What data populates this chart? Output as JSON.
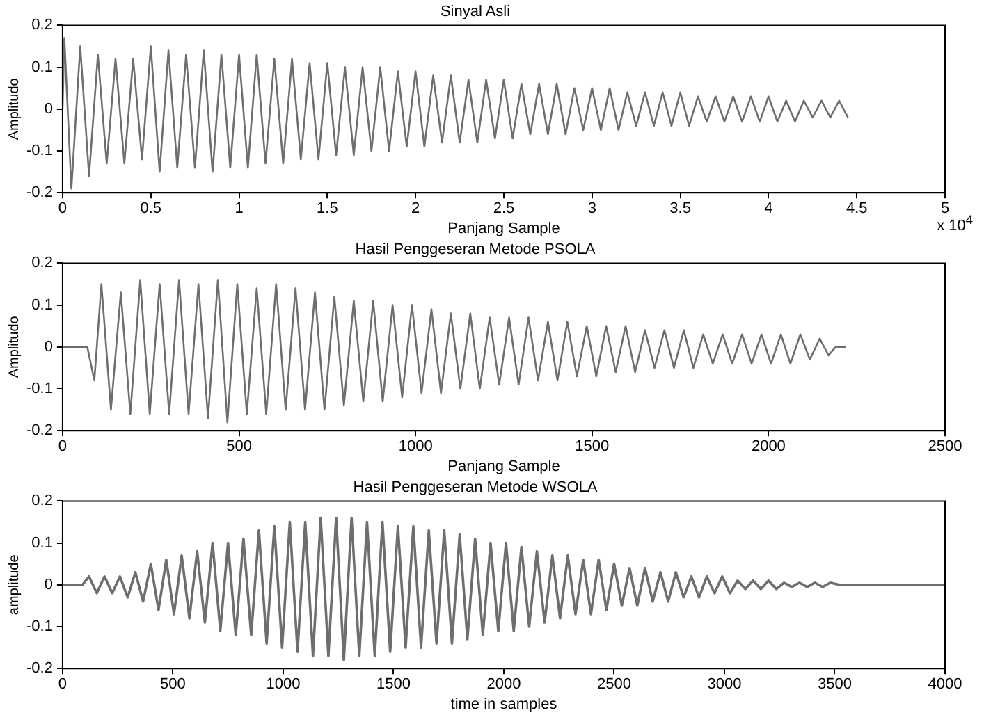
{
  "chart_data": [
    {
      "type": "line",
      "title": "Sinyal Asli",
      "xlabel": "Panjang Sample",
      "ylabel": "Amplitudo",
      "annotations": [
        "x 10$^{4}$"
      ],
      "xlim": [
        0,
        5
      ],
      "ylim": [
        -0.2,
        0.2
      ],
      "xticks": [
        0,
        0.5,
        1,
        1.5,
        2,
        2.5,
        3,
        3.5,
        4,
        4.5,
        5
      ],
      "yticks": [
        -0.2,
        -0.1,
        0,
        0.1,
        0.2
      ],
      "x": [
        0,
        0.01,
        0.05,
        0.1,
        0.15,
        0.2,
        0.25,
        0.3,
        0.35,
        0.4,
        0.45,
        0.5,
        0.55,
        0.6,
        0.65,
        0.7,
        0.75,
        0.8,
        0.85,
        0.9,
        0.95,
        1,
        1.05,
        1.1,
        1.15,
        1.2,
        1.25,
        1.3,
        1.35,
        1.4,
        1.45,
        1.5,
        1.55,
        1.6,
        1.65,
        1.7,
        1.75,
        1.8,
        1.85,
        1.9,
        1.95,
        2,
        2.05,
        2.1,
        2.15,
        2.2,
        2.25,
        2.3,
        2.35,
        2.4,
        2.45,
        2.5,
        2.55,
        2.6,
        2.65,
        2.7,
        2.75,
        2.8,
        2.85,
        2.9,
        2.95,
        3,
        3.05,
        3.1,
        3.15,
        3.2,
        3.25,
        3.3,
        3.35,
        3.4,
        3.45,
        3.5,
        3.55,
        3.6,
        3.65,
        3.7,
        3.75,
        3.8,
        3.85,
        3.9,
        3.95,
        4,
        4.05,
        4.1,
        4.15,
        4.2,
        4.25,
        4.3,
        4.35,
        4.4,
        4.45
      ],
      "series": [
        {
          "color": "#6e6e6e",
          "values": [
            0,
            0.17,
            -0.19,
            0.15,
            -0.16,
            0.13,
            -0.13,
            0.12,
            -0.13,
            0.12,
            -0.12,
            0.15,
            -0.15,
            0.14,
            -0.14,
            0.13,
            -0.14,
            0.14,
            -0.15,
            0.13,
            -0.14,
            0.13,
            -0.14,
            0.13,
            -0.13,
            0.12,
            -0.13,
            0.12,
            -0.12,
            0.11,
            -0.12,
            0.11,
            -0.11,
            0.1,
            -0.11,
            0.1,
            -0.1,
            0.1,
            -0.1,
            0.09,
            -0.09,
            0.09,
            -0.09,
            0.08,
            -0.08,
            0.08,
            -0.08,
            0.07,
            -0.08,
            0.07,
            -0.07,
            0.07,
            -0.07,
            0.06,
            -0.06,
            0.06,
            -0.06,
            0.06,
            -0.06,
            0.05,
            -0.05,
            0.05,
            -0.05,
            0.05,
            -0.05,
            0.04,
            -0.04,
            0.04,
            -0.04,
            0.04,
            -0.04,
            0.04,
            -0.04,
            0.03,
            -0.03,
            0.03,
            -0.03,
            0.03,
            -0.03,
            0.03,
            -0.03,
            0.03,
            -0.03,
            0.02,
            -0.03,
            0.02,
            -0.02,
            0.02,
            -0.02,
            0.02,
            -0.02
          ]
        }
      ]
    },
    {
      "type": "line",
      "title": "Hasil Penggeseran Metode PSOLA",
      "xlabel": "Panjang Sample",
      "ylabel": "Amplitudo",
      "xlim": [
        0,
        2500
      ],
      "ylim": [
        -0.2,
        0.2
      ],
      "xticks": [
        0,
        500,
        1000,
        1500,
        2000,
        2500
      ],
      "yticks": [
        -0.2,
        -0.1,
        0,
        0.1,
        0.2
      ],
      "x": [
        0,
        70,
        90,
        110,
        137,
        165,
        192,
        220,
        247,
        275,
        302,
        330,
        357,
        385,
        412,
        440,
        467,
        495,
        522,
        550,
        577,
        605,
        632,
        660,
        687,
        715,
        742,
        770,
        797,
        825,
        852,
        880,
        907,
        935,
        962,
        990,
        1017,
        1045,
        1072,
        1100,
        1127,
        1155,
        1182,
        1210,
        1237,
        1265,
        1292,
        1320,
        1347,
        1375,
        1402,
        1430,
        1457,
        1485,
        1512,
        1540,
        1567,
        1595,
        1622,
        1650,
        1677,
        1705,
        1732,
        1760,
        1787,
        1815,
        1842,
        1870,
        1897,
        1925,
        1952,
        1980,
        2007,
        2035,
        2062,
        2090,
        2117,
        2145,
        2170,
        2190,
        2220
      ],
      "series": [
        {
          "color": "#6e6e6e",
          "values": [
            0,
            0,
            -0.08,
            0.15,
            -0.15,
            0.13,
            -0.16,
            0.16,
            -0.16,
            0.15,
            -0.16,
            0.16,
            -0.16,
            0.15,
            -0.17,
            0.16,
            -0.18,
            0.15,
            -0.16,
            0.14,
            -0.16,
            0.15,
            -0.15,
            0.14,
            -0.15,
            0.13,
            -0.15,
            0.12,
            -0.14,
            0.11,
            -0.13,
            0.11,
            -0.13,
            0.1,
            -0.12,
            0.1,
            -0.11,
            0.09,
            -0.11,
            0.08,
            -0.1,
            0.08,
            -0.1,
            0.07,
            -0.09,
            0.07,
            -0.09,
            0.07,
            -0.08,
            0.06,
            -0.08,
            0.06,
            -0.07,
            0.05,
            -0.07,
            0.05,
            -0.06,
            0.05,
            -0.06,
            0.04,
            -0.05,
            0.04,
            -0.05,
            0.04,
            -0.05,
            0.03,
            -0.04,
            0.03,
            -0.04,
            0.03,
            -0.04,
            0.03,
            -0.04,
            0.03,
            -0.04,
            0.03,
            -0.03,
            0.02,
            -0.02,
            0,
            0
          ]
        }
      ]
    },
    {
      "type": "line",
      "title": "Hasil Penggeseran Metode WSOLA",
      "xlabel": "time in samples",
      "ylabel": "amplitude",
      "xlim": [
        0,
        4000
      ],
      "ylim": [
        -0.2,
        0.2
      ],
      "xticks": [
        0,
        500,
        1000,
        1500,
        2000,
        2500,
        3000,
        3500,
        4000
      ],
      "yticks": [
        -0.2,
        -0.1,
        0,
        0.1,
        0.2
      ],
      "x": [
        0,
        90,
        120,
        155,
        190,
        225,
        260,
        295,
        330,
        365,
        400,
        435,
        470,
        505,
        540,
        575,
        610,
        645,
        680,
        715,
        750,
        785,
        820,
        855,
        890,
        925,
        960,
        995,
        1030,
        1065,
        1100,
        1135,
        1170,
        1205,
        1240,
        1275,
        1310,
        1345,
        1380,
        1415,
        1450,
        1485,
        1520,
        1555,
        1590,
        1625,
        1660,
        1695,
        1730,
        1765,
        1800,
        1835,
        1870,
        1905,
        1940,
        1975,
        2010,
        2045,
        2080,
        2115,
        2150,
        2185,
        2220,
        2255,
        2290,
        2325,
        2360,
        2395,
        2430,
        2465,
        2500,
        2535,
        2570,
        2605,
        2640,
        2675,
        2710,
        2745,
        2780,
        2815,
        2850,
        2885,
        2920,
        2955,
        2990,
        3025,
        3060,
        3095,
        3130,
        3165,
        3200,
        3235,
        3270,
        3305,
        3340,
        3375,
        3410,
        3445,
        3480,
        3520,
        4000
      ],
      "series": [
        {
          "color": "#6e6e6e",
          "values": [
            0,
            0,
            0.02,
            -0.02,
            0.02,
            -0.02,
            0.02,
            -0.03,
            0.03,
            -0.04,
            0.05,
            -0.06,
            0.06,
            -0.07,
            0.07,
            -0.08,
            0.08,
            -0.09,
            0.1,
            -0.11,
            0.1,
            -0.12,
            0.11,
            -0.12,
            0.13,
            -0.14,
            0.14,
            -0.15,
            0.15,
            -0.16,
            0.15,
            -0.17,
            0.16,
            -0.17,
            0.16,
            -0.18,
            0.16,
            -0.17,
            0.15,
            -0.17,
            0.15,
            -0.16,
            0.14,
            -0.15,
            0.14,
            -0.15,
            0.13,
            -0.14,
            0.13,
            -0.14,
            0.12,
            -0.13,
            0.11,
            -0.12,
            0.1,
            -0.11,
            0.1,
            -0.11,
            0.09,
            -0.1,
            0.08,
            -0.09,
            0.07,
            -0.08,
            0.07,
            -0.07,
            0.06,
            -0.07,
            0.06,
            -0.06,
            0.05,
            -0.05,
            0.04,
            -0.05,
            0.04,
            -0.04,
            0.03,
            -0.04,
            0.03,
            -0.03,
            0.02,
            -0.03,
            0.02,
            -0.02,
            0.02,
            -0.02,
            0.01,
            -0.01,
            0.01,
            -0.01,
            0.01,
            -0.01,
            0.005,
            -0.005,
            0.005,
            -0.005,
            0.005,
            -0.005,
            0.005,
            0,
            0
          ]
        }
      ]
    }
  ]
}
